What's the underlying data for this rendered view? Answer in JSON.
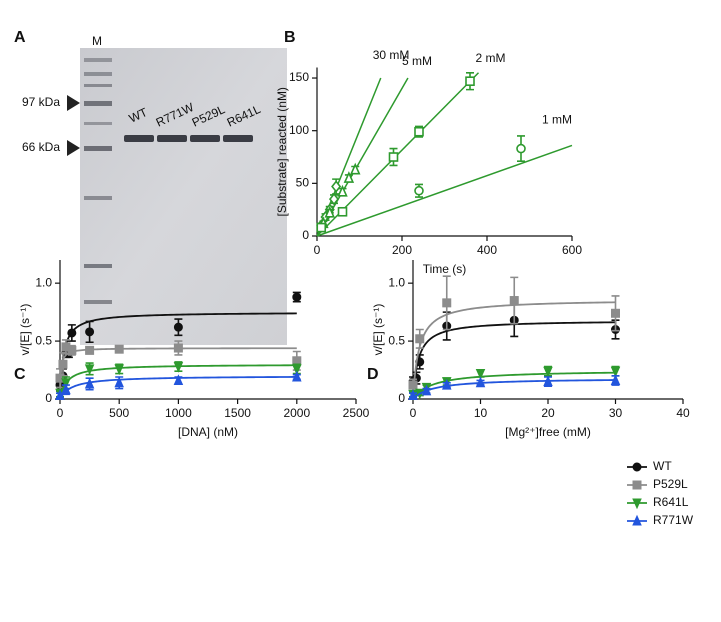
{
  "gel": {
    "panel": "A",
    "lane_marker": "M",
    "markers": [
      "97 kDa",
      "66 kDa"
    ],
    "lanes": [
      "WT",
      "R771W",
      "P529L",
      "R641L"
    ]
  },
  "chart_data": [
    {
      "panel": "B",
      "type": "scatter",
      "xlabel": "Time (s)",
      "ylabel": "[Substrate] reacted (nM)",
      "xlim": [
        0,
        600
      ],
      "ylim": [
        0,
        160
      ],
      "xticks": [
        0,
        200,
        400,
        600
      ],
      "yticks": [
        0,
        50,
        100,
        150
      ],
      "marker_fill": false,
      "series": [
        {
          "name": "30 mM",
          "color": "#2e9a2e",
          "marker": "diamond",
          "x": [
            10,
            20,
            30,
            40,
            45
          ],
          "values": [
            10,
            18,
            25,
            35,
            47
          ],
          "errors": [
            2,
            3,
            3,
            4,
            7
          ],
          "fit": {
            "x": [
              0,
              150
            ],
            "values": [
              0,
              150
            ]
          }
        },
        {
          "name": "5 mM",
          "color": "#2e9a2e",
          "marker": "triangle-up",
          "x": [
            15,
            30,
            60,
            75,
            90
          ],
          "values": [
            12,
            22,
            42,
            55,
            63
          ],
          "errors": [
            2,
            3,
            3,
            3,
            3
          ],
          "fit": {
            "x": [
              0,
              214
            ],
            "values": [
              0,
              150
            ]
          }
        },
        {
          "name": "2 mM",
          "color": "#2e9a2e",
          "marker": "square",
          "x": [
            10,
            60,
            180,
            240,
            360
          ],
          "values": [
            8,
            23,
            75,
            99,
            147
          ],
          "errors": [
            2,
            3,
            8,
            5,
            8
          ],
          "fit": {
            "x": [
              0,
              380
            ],
            "values": [
              0,
              155
            ]
          }
        },
        {
          "name": "1 mM",
          "color": "#2e9a2e",
          "marker": "circle",
          "x": [
            240,
            480
          ],
          "values": [
            43,
            83
          ],
          "errors": [
            6,
            12
          ],
          "fit": {
            "x": [
              0,
              600
            ],
            "values": [
              0,
              86
            ]
          }
        }
      ]
    },
    {
      "panel": "C",
      "type": "scatter",
      "xlabel": "[DNA] (nM)",
      "ylabel": "v/[E] (s⁻¹)",
      "xlim": [
        0,
        2500
      ],
      "ylim": [
        0,
        1.2
      ],
      "xticks": [
        0,
        500,
        1000,
        1500,
        2000,
        2500
      ],
      "yticks": [
        0,
        0.5,
        {
          "value": 1,
          "label": "1.0"
        }
      ],
      "marker_fill": true,
      "series": [
        {
          "name": "WT",
          "color": "#111111",
          "marker": "circle",
          "x": [
            0,
            25,
            50,
            75,
            100,
            250,
            1000,
            2000
          ],
          "values": [
            0.12,
            0.2,
            0.4,
            0.4,
            0.57,
            0.58,
            0.62,
            0.88
          ],
          "errors": [
            0.05,
            0.06,
            0.04,
            0.04,
            0.07,
            0.09,
            0.07,
            0.04
          ],
          "fit": {
            "vmax": 0.75,
            "km": 30
          }
        },
        {
          "name": "P529L",
          "color": "#8c8c8c",
          "marker": "square",
          "x": [
            0,
            25,
            50,
            100,
            250,
            500,
            1000,
            2000
          ],
          "values": [
            0.18,
            0.3,
            0.45,
            0.42,
            0.42,
            0.43,
            0.44,
            0.33
          ],
          "errors": [
            0.08,
            0.1,
            0.06,
            0.04,
            0.03,
            0.02,
            0.06,
            0.08
          ],
          "fit": {
            "vmax": 0.44,
            "km": 8
          }
        },
        {
          "name": "R641L",
          "color": "#2e9a2e",
          "marker": "triangle-down",
          "x": [
            0,
            50,
            250,
            500,
            1000,
            2000
          ],
          "values": [
            0.05,
            0.14,
            0.26,
            0.26,
            0.28,
            0.26
          ],
          "errors": [
            0.03,
            0.05,
            0.05,
            0.04,
            0.04,
            0.04
          ],
          "fit": {
            "vmax": 0.3,
            "km": 60
          }
        },
        {
          "name": "R771W",
          "color": "#2255dd",
          "marker": "triangle-up",
          "x": [
            0,
            50,
            250,
            500,
            1000,
            2000
          ],
          "values": [
            0.03,
            0.08,
            0.13,
            0.14,
            0.16,
            0.19
          ],
          "errors": [
            0.02,
            0.04,
            0.05,
            0.05,
            0.03,
            0.02
          ],
          "fit": {
            "vmax": 0.2,
            "km": 100
          }
        }
      ]
    },
    {
      "panel": "D",
      "type": "scatter",
      "xlabel": "[Mg²⁺]free (mM)",
      "ylabel": "v/[E] (s⁻¹)",
      "xlim": [
        0,
        40
      ],
      "ylim": [
        0,
        1.2
      ],
      "xticks": [
        0,
        10,
        20,
        30,
        40
      ],
      "yticks": [
        0,
        0.5,
        {
          "value": 1,
          "label": "1.0"
        }
      ],
      "marker_fill": true,
      "legend": "right",
      "series": [
        {
          "name": "WT",
          "color": "#111111",
          "marker": "circle",
          "x": [
            0,
            0.5,
            1,
            5,
            15,
            30
          ],
          "values": [
            0.15,
            0.18,
            0.32,
            0.63,
            0.68,
            0.6
          ],
          "errors": [
            0.04,
            0.05,
            0.06,
            0.12,
            0.14,
            0.08
          ],
          "fit": {
            "vmax": 0.68,
            "km": 0.8
          }
        },
        {
          "name": "P529L",
          "color": "#8c8c8c",
          "marker": "square",
          "x": [
            0,
            1,
            5,
            15,
            30
          ],
          "values": [
            0.12,
            0.52,
            0.83,
            0.85,
            0.74
          ],
          "errors": [
            0.05,
            0.08,
            0.23,
            0.2,
            0.15
          ],
          "fit": {
            "vmax": 0.86,
            "km": 0.9
          }
        },
        {
          "name": "R641L",
          "color": "#2e9a2e",
          "marker": "triangle-down",
          "x": [
            0,
            1,
            2,
            5,
            10,
            20,
            30
          ],
          "values": [
            0.04,
            0.05,
            0.1,
            0.15,
            0.22,
            0.24,
            0.24
          ],
          "errors": [
            0.02,
            0.02,
            0.02,
            0.03,
            0.03,
            0.04,
            0.04
          ],
          "fit": {
            "vmax": 0.25,
            "km": 3
          }
        },
        {
          "name": "R771W",
          "color": "#2255dd",
          "marker": "triangle-up",
          "x": [
            0,
            2,
            5,
            10,
            20,
            30
          ],
          "values": [
            0.03,
            0.07,
            0.12,
            0.14,
            0.15,
            0.16
          ],
          "errors": [
            0.02,
            0.02,
            0.02,
            0.02,
            0.04,
            0.04
          ],
          "fit": {
            "vmax": 0.18,
            "km": 3
          }
        }
      ]
    }
  ]
}
